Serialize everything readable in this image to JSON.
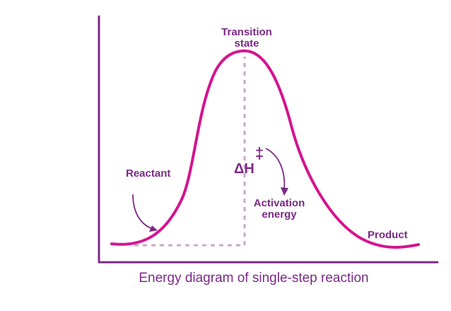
{
  "labels": {
    "transition_line1": "Transition",
    "transition_line2": "state",
    "reactant": "Reactant",
    "delta_h": "ΔH",
    "double_dagger": "‡",
    "activation_line1": "Activation",
    "activation_line2": "energy",
    "product": "Product"
  },
  "caption": "Energy diagram of single-step reaction",
  "colors": {
    "curve": "#d4148f",
    "text": "#7b2a86",
    "axis": "#7b2a86",
    "dashed": "#c8a8cc"
  }
}
